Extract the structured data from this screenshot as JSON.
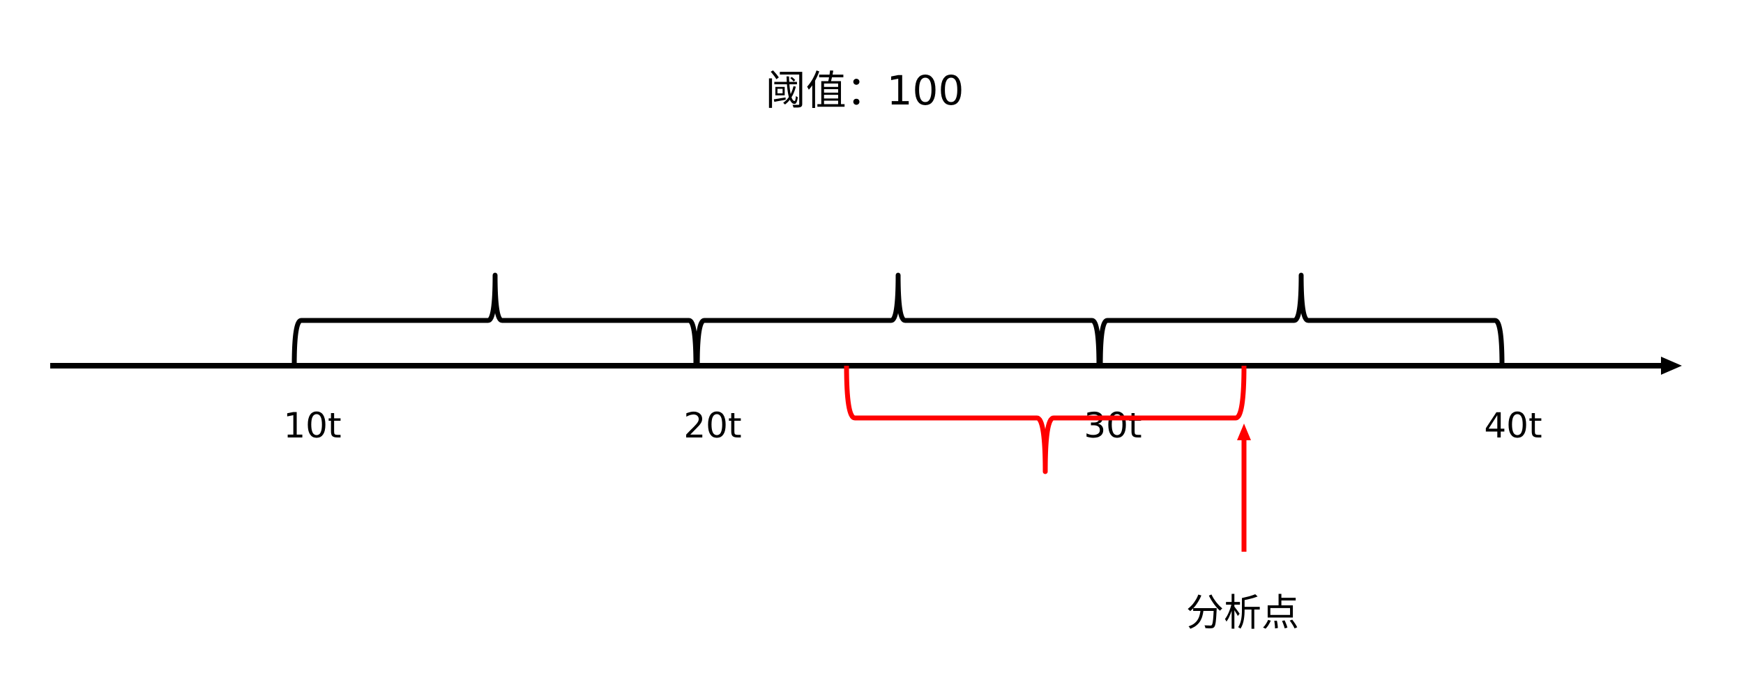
{
  "title": "阈值：100",
  "ticks": [
    "10t",
    "20t",
    "30t",
    "40t"
  ],
  "analysis_label": "分析点",
  "colors": {
    "axis": "#000000",
    "window": "#000000",
    "sliding_window": "#ff0000",
    "analysis_arrow": "#ff0000"
  }
}
